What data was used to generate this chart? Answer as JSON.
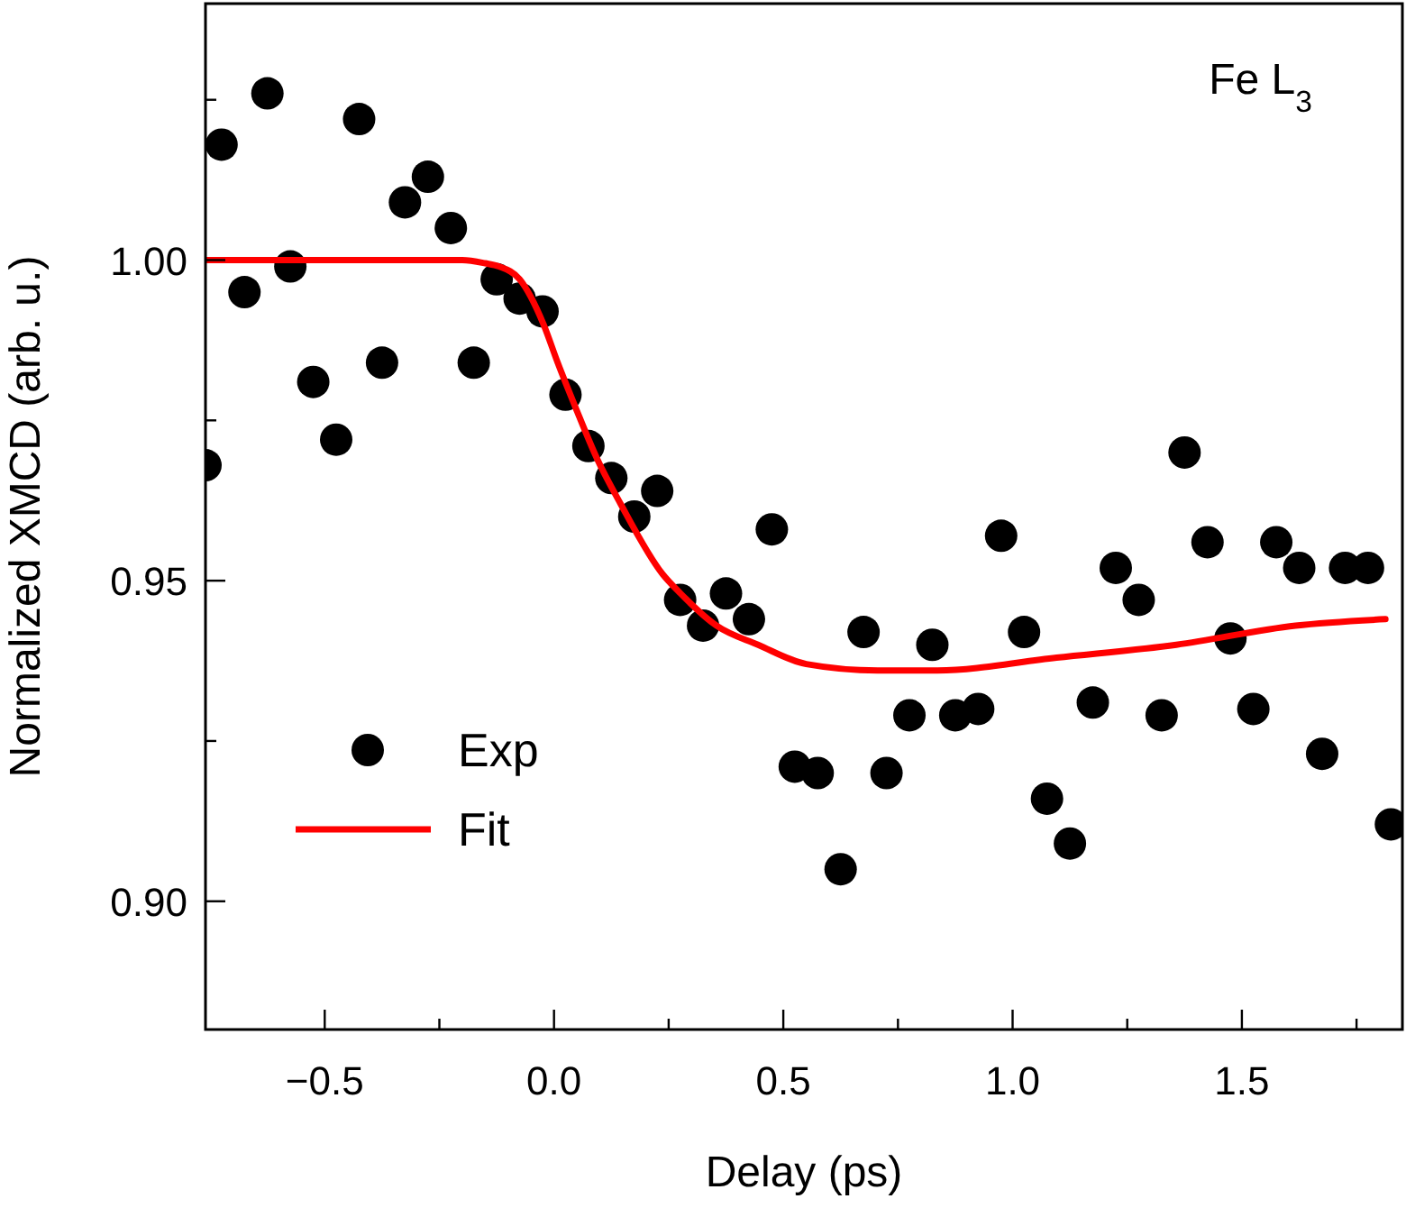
{
  "chart_data": {
    "type": "scatter",
    "xlabel": "Delay (ps)",
    "ylabel": "Normalized XMCD (arb. u.)",
    "annotations": [
      "Fe L$_{3}$"
    ],
    "xlim": [
      -0.76,
      1.85
    ],
    "ylim": [
      0.88,
      1.04
    ],
    "xticks": [
      -0.5,
      {
        "value": -0.25,
        "label": null
      },
      {
        "value": 0,
        "label": "0.0"
      },
      {
        "value": 0.25,
        "label": null
      },
      0.5,
      {
        "value": 0.75,
        "label": null
      },
      {
        "value": 1,
        "label": "1.0"
      },
      {
        "value": 1.25,
        "label": null
      },
      1.5,
      {
        "value": 1.75,
        "label": null
      }
    ],
    "yticks": [
      {
        "value": 0.9,
        "label": "0.90"
      },
      {
        "value": 0.925,
        "label": null
      },
      {
        "value": 0.95,
        "label": "0.95"
      },
      {
        "value": 0.975,
        "label": null
      },
      {
        "value": 1.0,
        "label": "1.00"
      },
      {
        "value": 1.025,
        "label": null
      }
    ],
    "grid": false,
    "legend": "bottom left",
    "marker": "circle",
    "series": [
      {
        "name": "Exp",
        "color": "#000000",
        "x": [
          -0.76,
          -0.725,
          -0.675,
          -0.625,
          -0.575,
          -0.525,
          -0.475,
          -0.425,
          -0.375,
          -0.325,
          -0.275,
          -0.225,
          -0.175,
          -0.125,
          -0.075,
          -0.025,
          0.025,
          0.075,
          0.125,
          0.175,
          0.225,
          0.275,
          0.325,
          0.375,
          0.425,
          0.475,
          0.525,
          0.575,
          0.625,
          0.675,
          0.725,
          0.775,
          0.825,
          0.875,
          0.925,
          0.975,
          1.025,
          1.075,
          1.125,
          1.175,
          1.225,
          1.275,
          1.325,
          1.375,
          1.425,
          1.475,
          1.525,
          1.575,
          1.625,
          1.675,
          1.725,
          1.775,
          1.825
        ],
        "values": [
          0.968,
          1.018,
          0.995,
          1.026,
          0.999,
          0.981,
          0.972,
          1.022,
          0.984,
          1.009,
          1.013,
          1.005,
          0.984,
          0.997,
          0.994,
          0.992,
          0.979,
          0.971,
          0.966,
          0.96,
          0.964,
          0.947,
          0.943,
          0.948,
          0.944,
          0.958,
          0.921,
          0.92,
          0.905,
          0.942,
          0.92,
          0.929,
          0.94,
          0.929,
          0.93,
          0.957,
          0.942,
          0.916,
          0.909,
          0.931,
          0.952,
          0.947,
          0.929,
          0.97,
          0.956,
          0.941,
          0.93,
          0.956,
          0.952,
          0.923,
          0.952,
          0.952,
          0.912
        ]
      },
      {
        "name": "Fit",
        "type": "line",
        "color": "#ff0000",
        "marker": "none",
        "line_style": "solid",
        "x": [
          -0.76,
          -0.2,
          -0.15,
          -0.12,
          -0.075,
          -0.023,
          0.008,
          0.047,
          0.094,
          0.145,
          0.237,
          0.276,
          0.354,
          0.445,
          0.55,
          0.706,
          0.836,
          1.096,
          1.357,
          1.617,
          1.813
        ],
        "values": [
          1.0,
          1.0,
          0.9995,
          0.999,
          0.997,
          0.99,
          0.984,
          0.977,
          0.969,
          0.962,
          0.951,
          0.948,
          0.943,
          0.94,
          0.937,
          0.936,
          0.936,
          0.938,
          0.94,
          0.943,
          0.944
        ]
      }
    ]
  }
}
